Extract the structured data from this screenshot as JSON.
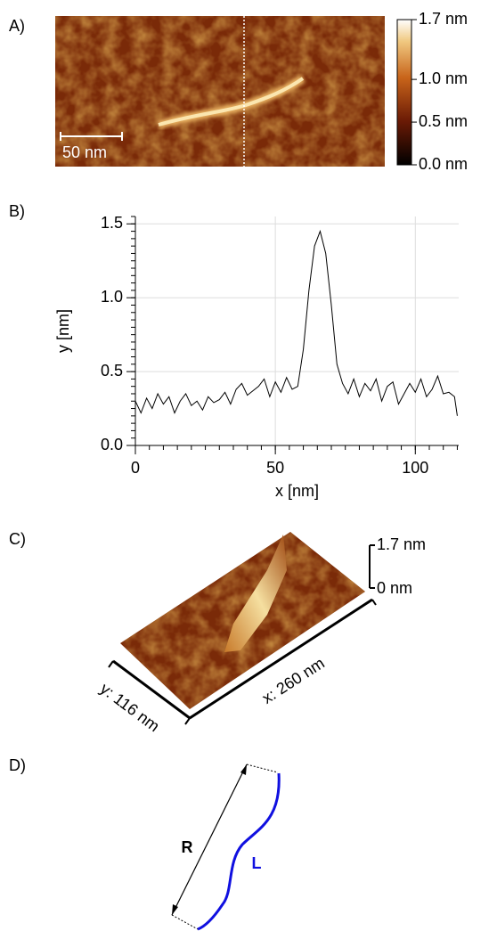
{
  "panel_labels": [
    "A)",
    "B)",
    "C)",
    "D)"
  ],
  "image": {
    "scale_bar": "50 nm",
    "colorbar_lim": [
      0,
      1.7
    ],
    "colorbar_ticks": [
      {
        "value": 1.7,
        "label": "1.7 nm"
      },
      {
        "value": 1.0,
        "label": "1.0 nm"
      },
      {
        "value": 0.5,
        "label": "0.5 nm"
      },
      {
        "value": 0.0,
        "label": "0.0 nm"
      }
    ]
  },
  "chart_data": {
    "type": "line",
    "xlabel": "x [nm]",
    "ylabel": "y [nm]",
    "x": [
      0,
      2,
      4,
      6,
      8,
      10,
      12,
      14,
      16,
      18,
      20,
      22,
      24,
      26,
      28,
      30,
      32,
      34,
      36,
      38,
      40,
      42,
      44,
      46,
      48,
      50,
      52,
      54,
      56,
      58,
      60,
      62,
      64,
      66,
      68,
      70,
      72,
      74,
      76,
      78,
      80,
      82,
      84,
      86,
      88,
      90,
      92,
      94,
      96,
      98,
      100,
      102,
      104,
      106,
      108,
      110,
      112,
      114,
      115
    ],
    "series": [
      {
        "color": "#000000",
        "values": [
          0.3,
          0.22,
          0.32,
          0.25,
          0.35,
          0.28,
          0.33,
          0.22,
          0.3,
          0.35,
          0.27,
          0.3,
          0.24,
          0.33,
          0.29,
          0.31,
          0.36,
          0.28,
          0.38,
          0.42,
          0.34,
          0.37,
          0.4,
          0.45,
          0.33,
          0.43,
          0.36,
          0.46,
          0.38,
          0.4,
          0.65,
          1.05,
          1.35,
          1.45,
          1.3,
          0.95,
          0.55,
          0.42,
          0.35,
          0.45,
          0.33,
          0.42,
          0.37,
          0.45,
          0.3,
          0.4,
          0.43,
          0.28,
          0.35,
          0.42,
          0.36,
          0.45,
          0.33,
          0.38,
          0.47,
          0.35,
          0.36,
          0.33,
          0.2
        ]
      }
    ],
    "xlim": [
      0,
      115.5
    ],
    "ylim": [
      0,
      1.55
    ],
    "xticks": [
      0,
      50,
      100
    ],
    "yticks": [
      {
        "value": 0,
        "label": "0.0"
      },
      0.5,
      {
        "value": 1,
        "label": "1.0"
      },
      1.5
    ],
    "grid": true
  },
  "surface": {
    "z_top": "1.7 nm",
    "z_bottom": "0 nm",
    "x_label": "x: 260 nm",
    "y_label": "y: 116 nm"
  },
  "diagram": {
    "end_to_end": "R",
    "contour": "L"
  }
}
